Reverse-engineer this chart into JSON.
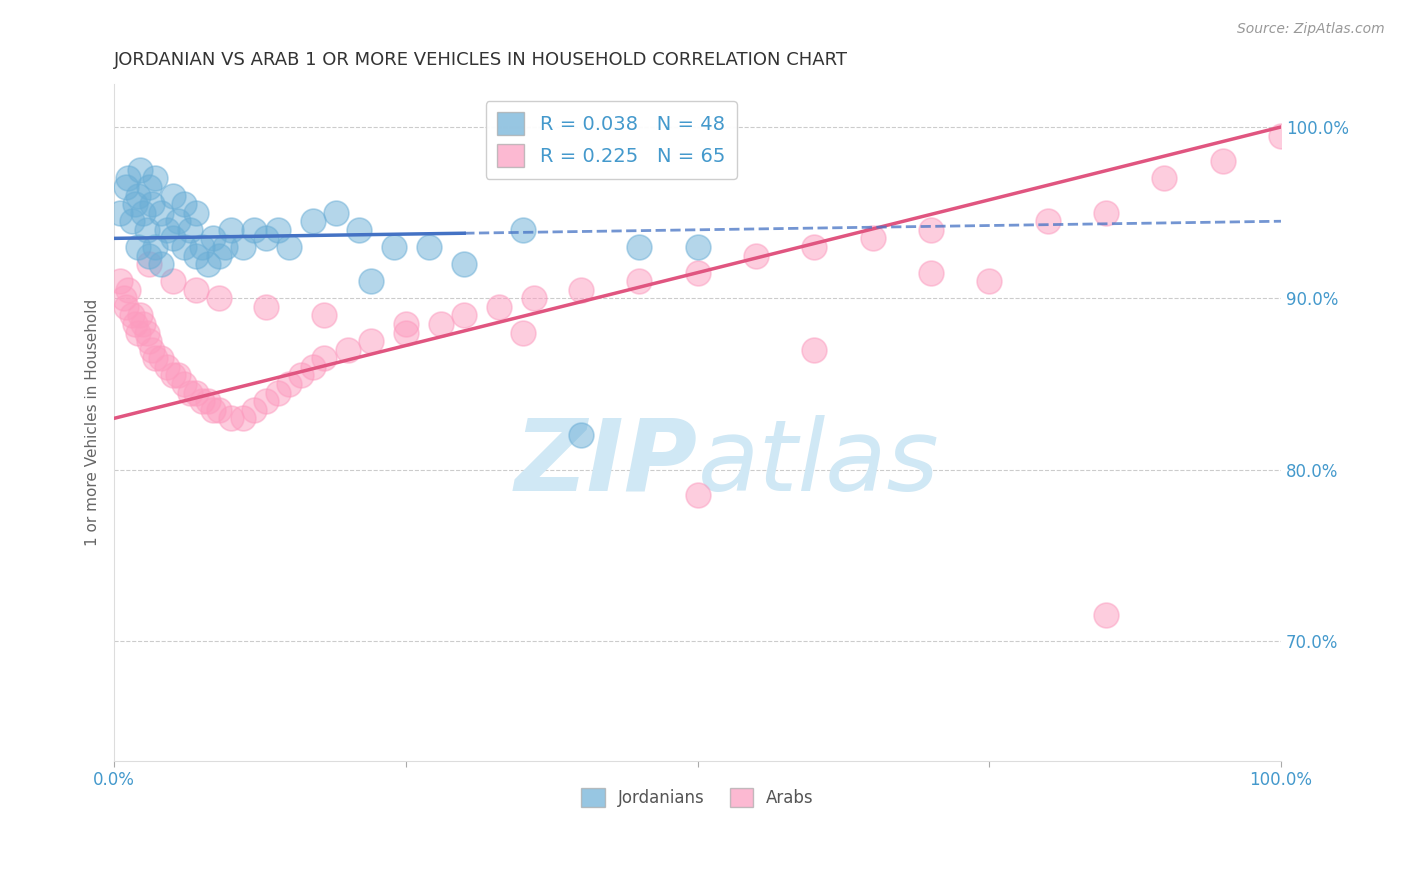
{
  "title": "JORDANIAN VS ARAB 1 OR MORE VEHICLES IN HOUSEHOLD CORRELATION CHART",
  "source": "Source: ZipAtlas.com",
  "ylabel": "1 or more Vehicles in Household",
  "R_jordanian": 0.038,
  "N_jordanian": 48,
  "R_arab": 0.225,
  "N_arab": 65,
  "xlim": [
    0.0,
    100.0
  ],
  "ylim": [
    63.0,
    102.5
  ],
  "yticks": [
    70.0,
    80.0,
    90.0,
    100.0
  ],
  "color_jordanian": "#6baed6",
  "color_arab": "#fc9cbf",
  "trend_jordanian_color": "#4472c4",
  "trend_arab_color": "#e05580",
  "background": "#ffffff",
  "grid_color": "#cccccc",
  "title_color": "#333333",
  "axis_label_color": "#666666",
  "tick_color": "#4499cc",
  "watermark_color": "#d0e8f5",
  "jordanian_x": [
    0.5,
    1.0,
    1.2,
    1.5,
    1.8,
    2.0,
    2.0,
    2.2,
    2.5,
    2.8,
    3.0,
    3.0,
    3.2,
    3.5,
    3.5,
    4.0,
    4.0,
    4.5,
    5.0,
    5.0,
    5.5,
    6.0,
    6.0,
    6.5,
    7.0,
    7.0,
    7.5,
    8.0,
    8.5,
    9.0,
    9.5,
    10.0,
    11.0,
    12.0,
    13.0,
    14.0,
    15.0,
    17.0,
    19.0,
    21.0,
    22.0,
    24.0,
    27.0,
    30.0,
    35.0,
    40.0,
    45.0,
    50.0
  ],
  "jordanian_y": [
    95.0,
    96.5,
    97.0,
    94.5,
    95.5,
    93.0,
    96.0,
    97.5,
    95.0,
    94.0,
    92.5,
    96.5,
    95.5,
    93.0,
    97.0,
    92.0,
    95.0,
    94.0,
    93.5,
    96.0,
    94.5,
    93.0,
    95.5,
    94.0,
    92.5,
    95.0,
    93.0,
    92.0,
    93.5,
    92.5,
    93.0,
    94.0,
    93.0,
    94.0,
    93.5,
    94.0,
    93.0,
    94.5,
    95.0,
    94.0,
    91.0,
    93.0,
    93.0,
    92.0,
    94.0,
    82.0,
    93.0,
    93.0
  ],
  "arab_x": [
    0.5,
    0.8,
    1.0,
    1.2,
    1.5,
    1.8,
    2.0,
    2.2,
    2.5,
    2.8,
    3.0,
    3.2,
    3.5,
    4.0,
    4.5,
    5.0,
    5.5,
    6.0,
    6.5,
    7.0,
    7.5,
    8.0,
    8.5,
    9.0,
    10.0,
    11.0,
    12.0,
    13.0,
    14.0,
    15.0,
    16.0,
    17.0,
    18.0,
    20.0,
    22.0,
    25.0,
    28.0,
    30.0,
    33.0,
    36.0,
    40.0,
    45.0,
    50.0,
    55.0,
    60.0,
    65.0,
    70.0,
    75.0,
    80.0,
    85.0,
    90.0,
    95.0,
    100.0,
    3.0,
    5.0,
    7.0,
    9.0,
    13.0,
    18.0,
    25.0,
    35.0,
    50.0,
    60.0,
    70.0,
    85.0
  ],
  "arab_y": [
    91.0,
    90.0,
    89.5,
    90.5,
    89.0,
    88.5,
    88.0,
    89.0,
    88.5,
    88.0,
    87.5,
    87.0,
    86.5,
    86.5,
    86.0,
    85.5,
    85.5,
    85.0,
    84.5,
    84.5,
    84.0,
    84.0,
    83.5,
    83.5,
    83.0,
    83.0,
    83.5,
    84.0,
    84.5,
    85.0,
    85.5,
    86.0,
    86.5,
    87.0,
    87.5,
    88.0,
    88.5,
    89.0,
    89.5,
    90.0,
    90.5,
    91.0,
    91.5,
    92.5,
    93.0,
    93.5,
    94.0,
    91.0,
    94.5,
    95.0,
    97.0,
    98.0,
    99.5,
    92.0,
    91.0,
    90.5,
    90.0,
    89.5,
    89.0,
    88.5,
    88.0,
    78.5,
    87.0,
    91.5,
    71.5
  ],
  "jordanian_trend_x": [
    0,
    100
  ],
  "jordanian_trend_y": [
    93.5,
    94.5
  ],
  "arab_trend_x": [
    0,
    100
  ],
  "arab_trend_y": [
    83.0,
    100.0
  ]
}
